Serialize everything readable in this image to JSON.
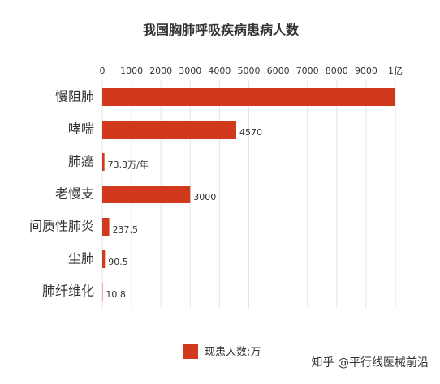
{
  "chart_data": {
    "type": "bar",
    "orientation": "horizontal",
    "title": "我国胸肺呼吸疾病患病人数",
    "categories": [
      "慢阻肺",
      "哮喘",
      "肺癌",
      "老慢支",
      "间质性肺炎",
      "尘肺",
      "肺纤维化"
    ],
    "series": [
      {
        "name": "现患人数:万",
        "color": "#d0391b",
        "values": [
          10000,
          4570,
          73.3,
          3000,
          237.5,
          90.5,
          10.8
        ],
        "value_labels": [
          null,
          "4570",
          "73.3万/年",
          "3000",
          "237.5",
          "90.5",
          "10.8"
        ]
      }
    ],
    "xlim": [
      0,
      10000
    ],
    "xticks": [
      0,
      1000,
      2000,
      3000,
      4000,
      5000,
      6000,
      7000,
      8000,
      9000,
      {
        "value": 10000,
        "label": "1亿"
      }
    ],
    "grid": true,
    "legend": "bottom",
    "watermark": "知乎 @平行线医械前沿"
  }
}
